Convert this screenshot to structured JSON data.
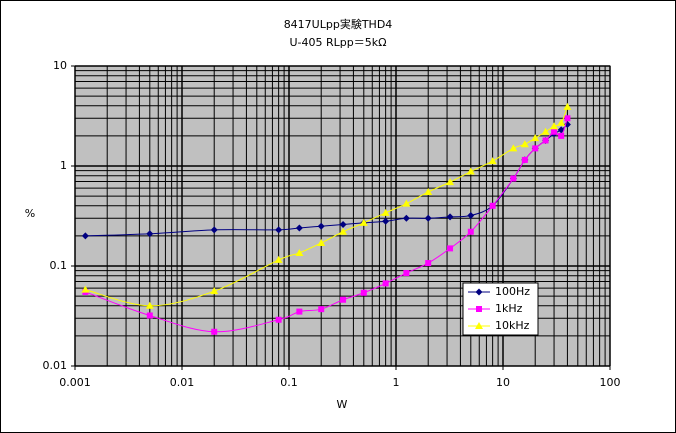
{
  "chart_data": {
    "type": "scatter",
    "title": "8417ULpp実験THD4",
    "subtitle": "U-405 RLpp＝5kΩ",
    "x_label": "W",
    "y_label": "%",
    "x_log": true,
    "y_log": true,
    "grid": true,
    "minor_grid": true,
    "smooth": true,
    "plot_background": "#c0c0c0",
    "legend_position": "lower right",
    "xlim": [
      0.001,
      100
    ],
    "xticks": [
      0.001,
      0.01,
      0.1,
      1,
      10,
      100
    ],
    "ylim": [
      0.01,
      10
    ],
    "yticks": [
      0.01,
      0.1,
      1,
      10
    ],
    "series": [
      {
        "name": "100Hz",
        "color": "#000080",
        "marker": "diamond",
        "x": [
          0.00125,
          0.005,
          0.02,
          0.08,
          0.125,
          0.2,
          0.32,
          0.5,
          0.8,
          1.25,
          2,
          3.2,
          5,
          8,
          12.5,
          16,
          20,
          25,
          30,
          35,
          40
        ],
        "values": [
          0.2,
          0.21,
          0.23,
          0.23,
          0.24,
          0.25,
          0.26,
          0.27,
          0.28,
          0.3,
          0.3,
          0.31,
          0.32,
          0.4,
          0.75,
          1.15,
          1.5,
          1.8,
          2.1,
          2.3,
          2.6
        ]
      },
      {
        "name": "1kHz",
        "color": "#ff00ff",
        "marker": "square",
        "x": [
          0.00125,
          0.005,
          0.02,
          0.08,
          0.125,
          0.2,
          0.32,
          0.5,
          0.8,
          1.25,
          2,
          3.2,
          5,
          8,
          12.5,
          16,
          20,
          25,
          30,
          35,
          40
        ],
        "values": [
          0.055,
          0.032,
          0.022,
          0.029,
          0.035,
          0.037,
          0.046,
          0.054,
          0.067,
          0.085,
          0.107,
          0.15,
          0.22,
          0.4,
          0.75,
          1.15,
          1.5,
          1.8,
          2.2,
          2.0,
          3.0
        ]
      },
      {
        "name": "10kHz",
        "color": "#ffff00",
        "marker": "triangle",
        "x": [
          0.00125,
          0.005,
          0.02,
          0.08,
          0.125,
          0.2,
          0.32,
          0.5,
          0.8,
          1.25,
          2,
          3.2,
          5,
          8,
          12.5,
          16,
          20,
          25,
          30,
          35,
          40
        ],
        "values": [
          0.058,
          0.04,
          0.056,
          0.115,
          0.135,
          0.17,
          0.22,
          0.27,
          0.34,
          0.42,
          0.55,
          0.69,
          0.88,
          1.12,
          1.5,
          1.65,
          1.9,
          2.2,
          2.5,
          2.7,
          3.9
        ]
      }
    ]
  }
}
